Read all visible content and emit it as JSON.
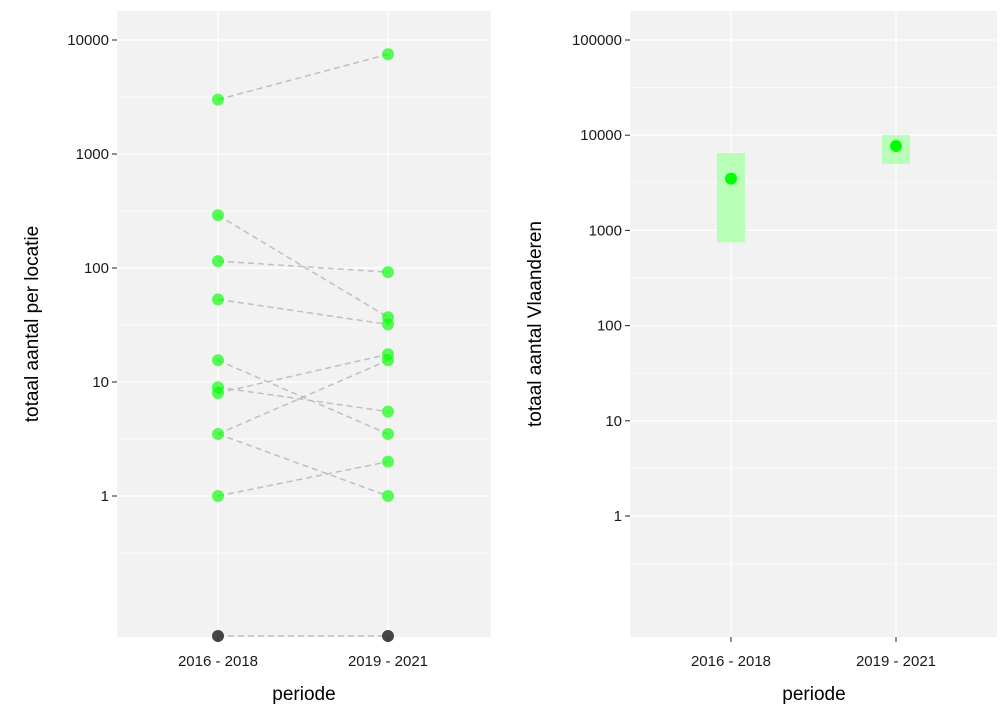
{
  "colors": {
    "panel_background": "#f2f2f2",
    "grid": "#ffffff",
    "point": "#00ff00",
    "zero_point": "#333333",
    "connector": "#bfbfbf",
    "range_fill": "#b3ffb3"
  },
  "chart_data": [
    {
      "type": "scatter",
      "title": "",
      "xlabel": "periode",
      "ylabel": "totaal aantal per locatie",
      "categories": [
        "2016 - 2018",
        "2019 - 2021"
      ],
      "y_scale": "log10",
      "y_ticks": [
        {
          "value": 1,
          "label": "1"
        },
        {
          "value": 10,
          "label": "10"
        },
        {
          "value": 100,
          "label": "100"
        },
        {
          "value": 1000,
          "label": "1000"
        },
        {
          "value": 10000,
          "label": "10000"
        }
      ],
      "grid": true,
      "legend": "none",
      "points_2016_2018": [
        3000,
        290,
        115,
        53,
        15.5,
        9,
        8,
        3.5,
        1,
        0
      ],
      "points_2019_2021": [
        7500,
        92,
        37,
        32,
        17.5,
        15.5,
        5.5,
        3.5,
        2,
        1,
        0
      ],
      "connections": [
        [
          3000,
          7500
        ],
        [
          290,
          37
        ],
        [
          115,
          92
        ],
        [
          53,
          32
        ],
        [
          15.5,
          3.5
        ],
        [
          9,
          5.5
        ],
        [
          8,
          17.5
        ],
        [
          3.5,
          15.5
        ],
        [
          3.5,
          1
        ],
        [
          1,
          2
        ],
        [
          0,
          0
        ]
      ]
    },
    {
      "type": "scatter",
      "title": "",
      "xlabel": "periode",
      "ylabel": "totaal aantal Vlaanderen",
      "categories": [
        "2016 - 2018",
        "2019 - 2021"
      ],
      "y_scale": "log10",
      "y_ticks": [
        {
          "value": 1,
          "label": "1"
        },
        {
          "value": 10,
          "label": "10"
        },
        {
          "value": 100,
          "label": "100"
        },
        {
          "value": 1000,
          "label": "1000"
        },
        {
          "value": 10000,
          "label": "10000"
        },
        {
          "value": 100000,
          "label": "100000"
        }
      ],
      "grid": true,
      "legend": "none",
      "points": [
        {
          "category": "2016 - 2018",
          "value": 3500,
          "low": 750,
          "high": 6500
        },
        {
          "category": "2019 - 2021",
          "value": 7700,
          "low": 5000,
          "high": 10000
        }
      ]
    }
  ]
}
